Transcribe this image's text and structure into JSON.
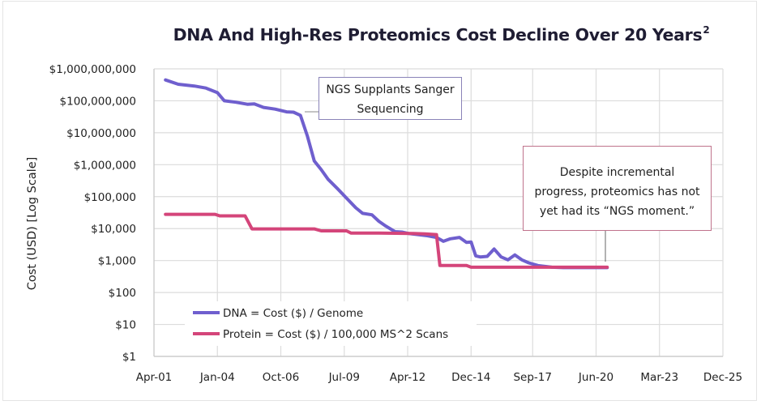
{
  "chart_data": {
    "type": "line",
    "title": "DNA And High-Res Proteomics Cost Decline Over 20 Years",
    "title_superscript": "2",
    "xlabel": "",
    "ylabel": "Cost (USD) [Log Scale]",
    "yscale": "log",
    "ylim": [
      1,
      1000000000
    ],
    "xlim": [
      2001.25,
      2025.92
    ],
    "x_tick_labels": [
      "Apr-01",
      "Jan-04",
      "Oct-06",
      "Jul-09",
      "Apr-12",
      "Dec-14",
      "Sep-17",
      "Jun-20",
      "Mar-23",
      "Dec-25"
    ],
    "x_tick_values": [
      2001.25,
      2004.0,
      2006.75,
      2009.5,
      2012.25,
      2015.0,
      2017.67,
      2020.42,
      2023.17,
      2025.92
    ],
    "y_tick_labels": [
      "$1",
      "$10",
      "$100",
      "$1,000",
      "$10,000",
      "$100,000",
      "$1,000,000",
      "$10,000,000",
      "$100,000,000",
      "$1,000,000,000"
    ],
    "y_tick_values": [
      1,
      10,
      100,
      1000,
      10000,
      100000,
      1000000,
      10000000,
      100000000,
      1000000000
    ],
    "grid": true,
    "legend_position": "bottom-left",
    "series": [
      {
        "name": "DNA = Cost ($) / Genome",
        "color": "#6f5fce",
        "x": [
          2001.75,
          2002.3,
          2003.0,
          2003.5,
          2004.0,
          2004.3,
          2004.8,
          2005.3,
          2005.6,
          2006.0,
          2006.5,
          2007.0,
          2007.3,
          2007.6,
          2007.9,
          2008.2,
          2008.5,
          2008.8,
          2009.2,
          2009.6,
          2010.0,
          2010.3,
          2010.7,
          2011.0,
          2011.3,
          2011.7,
          2012.0,
          2012.3,
          2012.7,
          2013.1,
          2013.5,
          2013.8,
          2014.1,
          2014.5,
          2014.8,
          2015.0,
          2015.2,
          2015.4,
          2015.7,
          2016.0,
          2016.3,
          2016.6,
          2016.9,
          2017.2,
          2017.5,
          2017.9,
          2018.5,
          2019.0,
          2020.5,
          2020.9
        ],
        "values": [
          450000000,
          330000000,
          290000000,
          250000000,
          180000000,
          100000000,
          90000000,
          78000000,
          80000000,
          62000000,
          55000000,
          45000000,
          44000000,
          35000000,
          8000000,
          1300000,
          700000,
          350000,
          180000,
          90000,
          45000,
          30000,
          27000,
          17000,
          12000,
          8000,
          7800,
          7000,
          6500,
          6000,
          5300,
          4000,
          4800,
          5300,
          3700,
          3800,
          1400,
          1300,
          1350,
          2300,
          1300,
          1050,
          1500,
          1050,
          850,
          700,
          620,
          600,
          600,
          600
        ]
      },
      {
        "name": "Protein = Cost ($) / 100,000 MS^2 Scans",
        "color": "#d4457a",
        "x": [
          2001.75,
          2003.1,
          2003.9,
          2004.1,
          2005.2,
          2005.5,
          2008.2,
          2008.5,
          2009.6,
          2009.8,
          2011.0,
          2012.5,
          2013.0,
          2013.5,
          2013.65,
          2014.8,
          2015.0,
          2016.0,
          2020.9
        ],
        "values": [
          28000,
          28000,
          28000,
          25000,
          25000,
          9800,
          9800,
          8500,
          8500,
          7200,
          7200,
          7000,
          6800,
          6500,
          700,
          700,
          620,
          620,
          620
        ]
      }
    ]
  },
  "annotations": {
    "ngs": {
      "line1": "NGS Supplants Sanger",
      "line2": "Sequencing"
    },
    "proteomics": {
      "line1": "Despite incremental",
      "line2": "progress, proteomics has not",
      "line3": "yet had its “NGS moment.”"
    }
  }
}
